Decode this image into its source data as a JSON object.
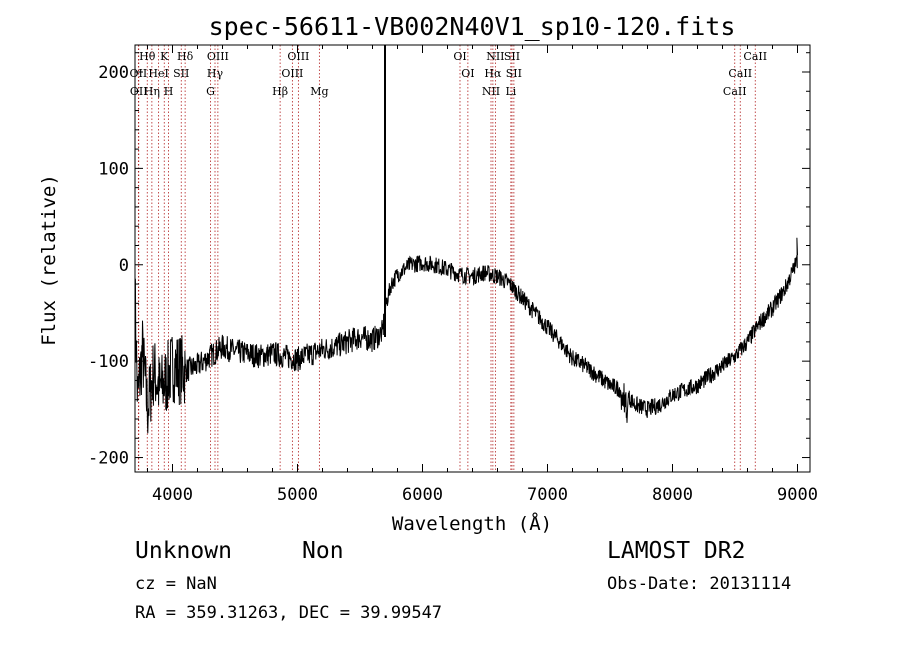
{
  "chart_data": {
    "type": "line",
    "title": "spec-56611-VB002N40V1_sp10-120.fits",
    "xlabel": "Wavelength (Å)",
    "ylabel": "Flux (relative)",
    "xlim": [
      3700,
      9100
    ],
    "ylim": [
      -215,
      228
    ],
    "xticks": [
      4000,
      5000,
      6000,
      7000,
      8000,
      9000
    ],
    "yticks": [
      -200,
      -100,
      0,
      100,
      200
    ],
    "grid": false,
    "series_color": "#000000",
    "line_marker_color": "#b22222",
    "spike": {
      "x": 5700,
      "y_from": -75,
      "y_to": 228
    },
    "spectrum_anchors": [
      [
        3700,
        -30
      ],
      [
        3720,
        -140
      ],
      [
        3760,
        -90
      ],
      [
        3800,
        -150
      ],
      [
        3850,
        -110
      ],
      [
        3900,
        -130
      ],
      [
        3950,
        -120
      ],
      [
        4000,
        -105
      ],
      [
        4100,
        -110
      ],
      [
        4200,
        -105
      ],
      [
        4300,
        -95
      ],
      [
        4400,
        -85
      ],
      [
        4500,
        -90
      ],
      [
        4600,
        -92
      ],
      [
        4700,
        -95
      ],
      [
        4800,
        -92
      ],
      [
        4900,
        -95
      ],
      [
        5000,
        -98
      ],
      [
        5100,
        -93
      ],
      [
        5200,
        -88
      ],
      [
        5300,
        -85
      ],
      [
        5400,
        -80
      ],
      [
        5500,
        -75
      ],
      [
        5600,
        -78
      ],
      [
        5680,
        -70
      ],
      [
        5710,
        -40
      ],
      [
        5750,
        -20
      ],
      [
        5800,
        -10
      ],
      [
        5900,
        0
      ],
      [
        6000,
        2
      ],
      [
        6100,
        0
      ],
      [
        6200,
        -5
      ],
      [
        6300,
        -10
      ],
      [
        6400,
        -12
      ],
      [
        6500,
        -8
      ],
      [
        6600,
        -12
      ],
      [
        6700,
        -20
      ],
      [
        6800,
        -35
      ],
      [
        6900,
        -50
      ],
      [
        7000,
        -65
      ],
      [
        7100,
        -80
      ],
      [
        7200,
        -97
      ],
      [
        7300,
        -105
      ],
      [
        7400,
        -115
      ],
      [
        7500,
        -125
      ],
      [
        7600,
        -130
      ],
      [
        7700,
        -145
      ],
      [
        7800,
        -150
      ],
      [
        7900,
        -145
      ],
      [
        8000,
        -135
      ],
      [
        8100,
        -130
      ],
      [
        8200,
        -125
      ],
      [
        8300,
        -115
      ],
      [
        8400,
        -105
      ],
      [
        8500,
        -95
      ],
      [
        8600,
        -80
      ],
      [
        8700,
        -60
      ],
      [
        8800,
        -45
      ],
      [
        8900,
        -25
      ],
      [
        8950,
        -10
      ],
      [
        9000,
        5
      ]
    ],
    "line_labels": [
      {
        "text": "Hθ",
        "x": 3798,
        "row": 0
      },
      {
        "text": "K",
        "x": 3934,
        "row": 0
      },
      {
        "text": "Hδ",
        "x": 4101,
        "row": 0
      },
      {
        "text": "OIII",
        "x": 4363,
        "row": 0
      },
      {
        "text": "OIII",
        "x": 5007,
        "row": 0
      },
      {
        "text": "OI",
        "x": 6300,
        "row": 0
      },
      {
        "text": "NII",
        "x": 6583,
        "row": 0
      },
      {
        "text": "SII",
        "x": 6716,
        "row": 0
      },
      {
        "text": "CaII",
        "x": 8662,
        "row": 0
      },
      {
        "text": "OII",
        "x": 3727,
        "row": 1
      },
      {
        "text": "HeI",
        "x": 3889,
        "row": 1
      },
      {
        "text": "SII",
        "x": 4070,
        "row": 1
      },
      {
        "text": "Hγ",
        "x": 4340,
        "row": 1
      },
      {
        "text": "OIII",
        "x": 4959,
        "row": 1
      },
      {
        "text": "OI",
        "x": 6363,
        "row": 1
      },
      {
        "text": "Hα",
        "x": 6563,
        "row": 1
      },
      {
        "text": "SII",
        "x": 6731,
        "row": 1
      },
      {
        "text": "CaII",
        "x": 8542,
        "row": 1
      },
      {
        "text": "OII",
        "x": 3730,
        "row": 2
      },
      {
        "text": "Hη",
        "x": 3835,
        "row": 2
      },
      {
        "text": "H",
        "x": 3968,
        "row": 2
      },
      {
        "text": "G",
        "x": 4304,
        "row": 2
      },
      {
        "text": "Hβ",
        "x": 4861,
        "row": 2
      },
      {
        "text": "Mg",
        "x": 5175,
        "row": 2
      },
      {
        "text": "NII",
        "x": 6548,
        "row": 2
      },
      {
        "text": "Li",
        "x": 6707,
        "row": 2
      },
      {
        "text": "CaII",
        "x": 8498,
        "row": 2
      }
    ]
  },
  "footer": {
    "object_class": "Unknown",
    "subclass": "Non",
    "survey": "LAMOST DR2",
    "redshift_text": "cz = NaN",
    "obs_date_text": "Obs-Date: 20131114",
    "coords_text": "RA = 359.31263, DEC =  39.99547"
  }
}
